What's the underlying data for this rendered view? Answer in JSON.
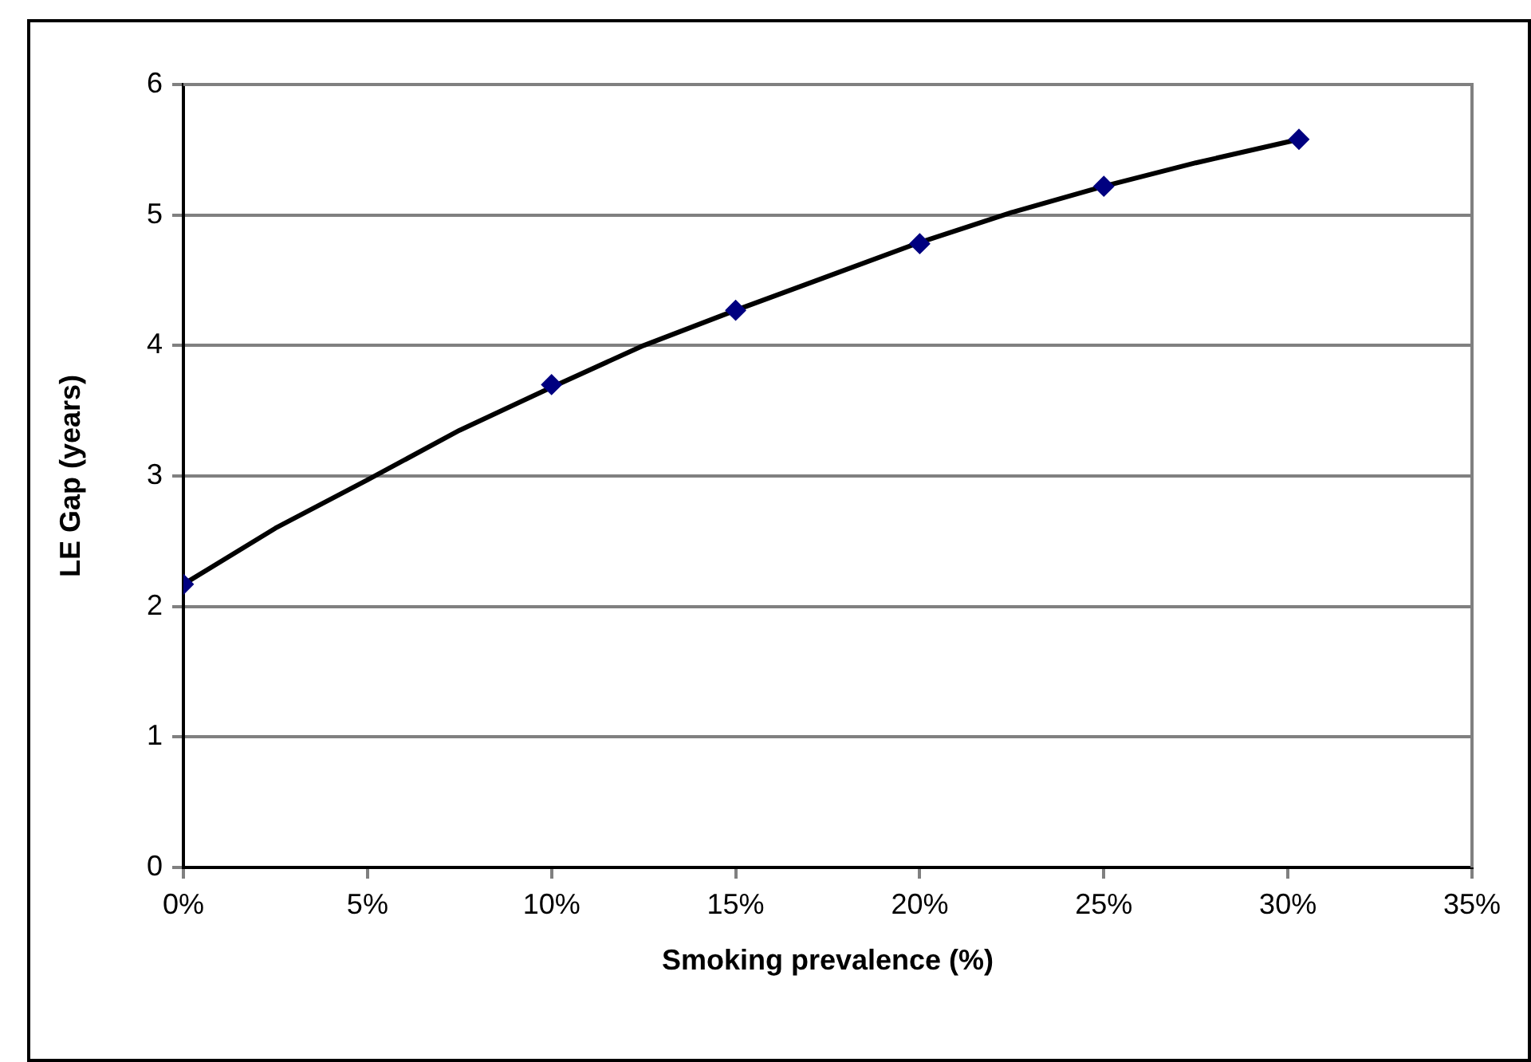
{
  "chart_data": {
    "type": "scatter",
    "xlabel": "Smoking prevalence (%)",
    "ylabel": "LE Gap (years)",
    "xlim": [
      0,
      35
    ],
    "xticks": [
      {
        "value": 0,
        "label": "0%"
      },
      {
        "value": 5,
        "label": "5%"
      },
      {
        "value": 10,
        "label": "10%"
      },
      {
        "value": 15,
        "label": "15%"
      },
      {
        "value": 20,
        "label": "20%"
      },
      {
        "value": 25,
        "label": "25%"
      },
      {
        "value": 30,
        "label": "30%"
      },
      {
        "value": 35,
        "label": "35%"
      }
    ],
    "ylim": [
      0,
      6
    ],
    "yticks": [
      0,
      1,
      2,
      3,
      4,
      5,
      6
    ],
    "grid": "y",
    "legend": false,
    "series": [
      {
        "type": "line",
        "color": "#000000",
        "marker": "none",
        "line_style": "solid",
        "x": [
          0,
          2.5,
          5,
          7.5,
          10,
          12.5,
          15,
          17.5,
          20,
          22.5,
          25,
          27.5,
          30.3
        ],
        "values": [
          2.17,
          2.6,
          2.97,
          3.35,
          3.68,
          4.0,
          4.27,
          4.53,
          4.79,
          5.02,
          5.22,
          5.4,
          5.58
        ]
      },
      {
        "color": "#000080",
        "marker": "diamond",
        "x": [
          0,
          10,
          15,
          20,
          25,
          30.3
        ],
        "values": [
          2.17,
          3.7,
          4.27,
          4.78,
          5.22,
          5.58
        ]
      }
    ]
  }
}
